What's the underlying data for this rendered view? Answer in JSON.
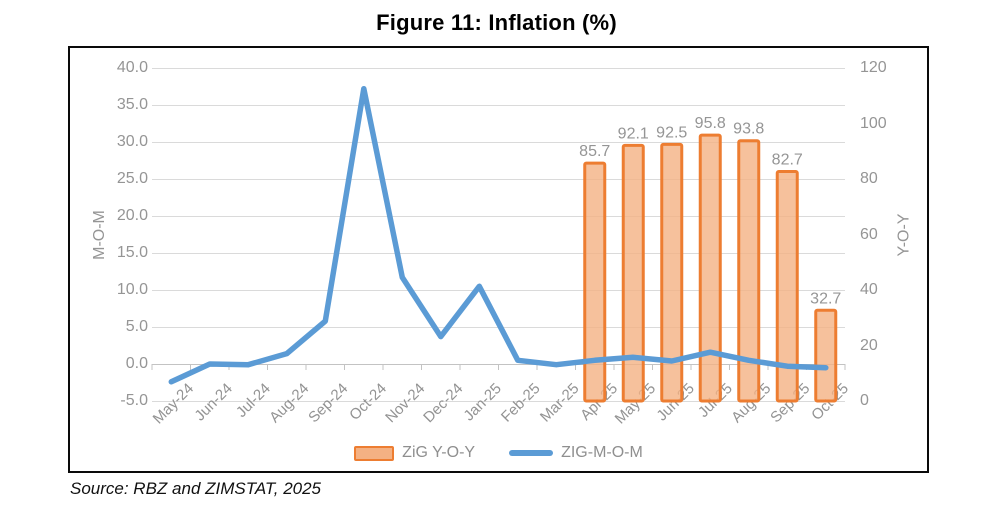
{
  "chart_data": {
    "type": "combo-bar-line",
    "title": "Figure 11: Inflation (%)",
    "source": "Source: RBZ and ZIMSTAT, 2025",
    "categories": [
      "May-24",
      "Jun-24",
      "Jul-24",
      "Aug-24",
      "Sep-24",
      "Oct-24",
      "Nov-24",
      "Dec-24",
      "Jan-25",
      "Feb-25",
      "Mar-25",
      "Apr-25",
      "May-25",
      "Jun-25",
      "Jul-25",
      "Aug-25",
      "Sep-25",
      "Oct-25"
    ],
    "series": [
      {
        "name": "ZiG Y-O-Y",
        "type": "bar",
        "axis": "right",
        "values": [
          null,
          null,
          null,
          null,
          null,
          null,
          null,
          null,
          null,
          null,
          null,
          85.7,
          92.1,
          92.5,
          95.8,
          93.8,
          82.7,
          32.7
        ],
        "data_labels": [
          "85.7",
          "92.1",
          "92.5",
          "95.8",
          "93.8",
          "82.7",
          "32.7"
        ]
      },
      {
        "name": "ZIG-M-O-M",
        "type": "line",
        "axis": "left",
        "values": [
          -2.4,
          0.0,
          -0.1,
          1.4,
          5.8,
          37.2,
          11.7,
          3.7,
          10.5,
          0.5,
          -0.1,
          0.5,
          0.9,
          0.4,
          1.6,
          0.5,
          -0.3,
          -0.5
        ]
      }
    ],
    "left_axis": {
      "title": "M-O-M",
      "min": -5,
      "max": 40,
      "step": 5,
      "tick_labels": [
        "40.0",
        "35.0",
        "30.0",
        "25.0",
        "20.0",
        "15.0",
        "10.0",
        "5.0",
        "0.0",
        "-5.0"
      ]
    },
    "right_axis": {
      "title": "Y-O-Y",
      "min": 0,
      "max": 120,
      "step": 20,
      "tick_labels": [
        "120",
        "100",
        "80",
        "60",
        "40",
        "20",
        "0"
      ]
    },
    "legend": {
      "position": "bottom"
    },
    "grid": true,
    "colors": {
      "bar_fill": "#F4B183",
      "bar_border": "#ED7D31",
      "line": "#5B9BD5",
      "axis_text": "#959595",
      "gridline": "#DADADA",
      "axis_line": "#C3C3C3",
      "title_text": "#000000"
    }
  }
}
